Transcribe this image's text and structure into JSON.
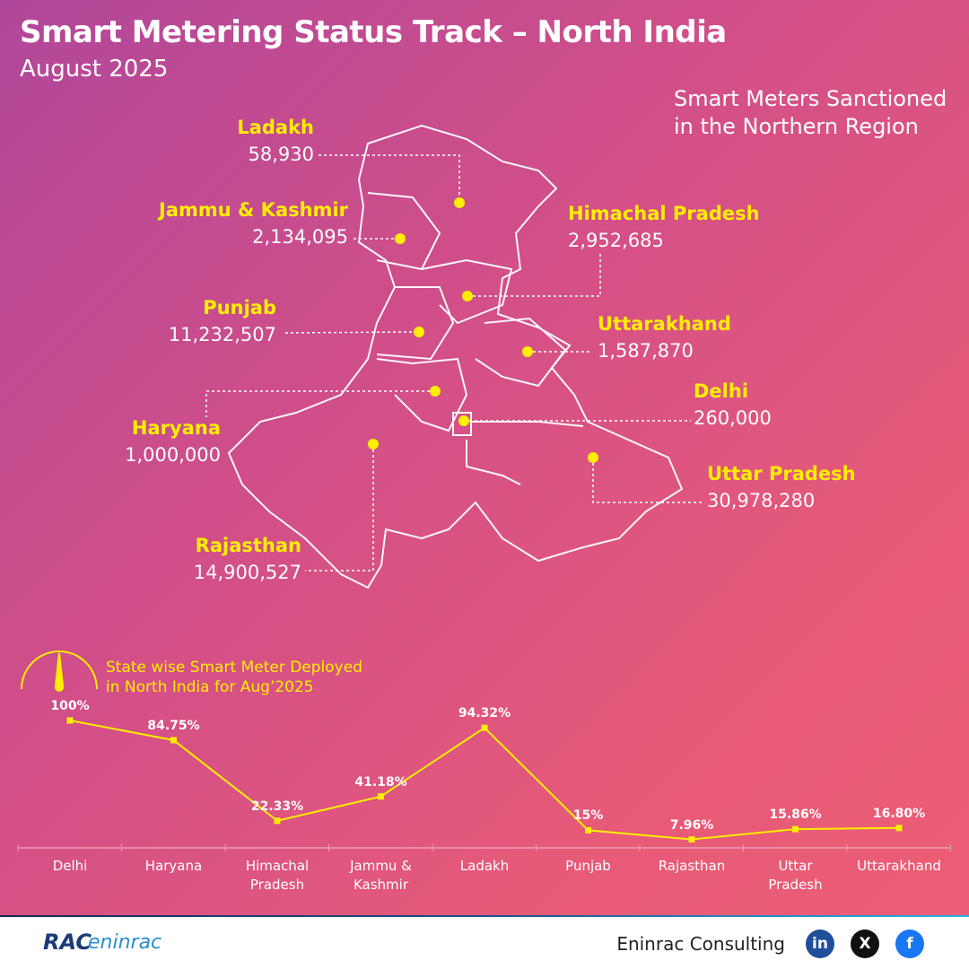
{
  "header": {
    "title": "Smart Metering Status Track – North India",
    "subtitle": "August 2025"
  },
  "map": {
    "caption": "Smart Meters Sanctioned\nin the Northern Region",
    "states": [
      {
        "name": "Ladakh",
        "value": "58,930"
      },
      {
        "name": "Jammu & Kashmir",
        "value": "2,134,095"
      },
      {
        "name": "Himachal Pradesh",
        "value": "2,952,685"
      },
      {
        "name": "Punjab",
        "value": "11,232,507"
      },
      {
        "name": "Uttarakhand",
        "value": "1,587,870"
      },
      {
        "name": "Haryana",
        "value": "1,000,000"
      },
      {
        "name": "Delhi",
        "value": "260,000"
      },
      {
        "name": "Uttar Pradesh",
        "value": "30,978,280"
      },
      {
        "name": "Rajasthan",
        "value": "14,900,527"
      }
    ]
  },
  "chart_data": {
    "type": "line",
    "title": "State wise Smart Meter Deployed\nin North India for Aug’2025",
    "categories": [
      "Delhi",
      "Haryana",
      "Himachal\nPradesh",
      "Jammu &\nKashmir",
      "Ladakh",
      "Punjab",
      "Rajasthan",
      "Uttar\nPradesh",
      "Uttarakhand"
    ],
    "values": [
      100,
      84.75,
      22.33,
      41.18,
      94.32,
      15,
      7.96,
      15.86,
      16.8
    ],
    "value_labels": [
      "100%",
      "84.75%",
      "22.33%",
      "41.18%",
      "94.32%",
      "15%",
      "7.96%",
      "15.86%",
      "16.80%"
    ],
    "color": "#ffee00",
    "ylim": [
      0,
      100
    ]
  },
  "footer": {
    "logo_mark": "RAC",
    "logo_text": "eninrac",
    "company": "Eninrac Consulting",
    "social": [
      "in",
      "X",
      "f"
    ]
  }
}
